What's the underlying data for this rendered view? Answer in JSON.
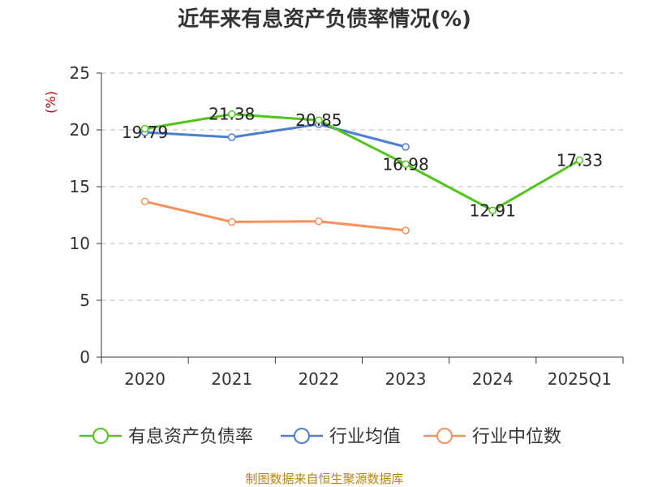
{
  "chart_data": {
    "type": "line",
    "title": "近年来有息资产负债率情况(%)",
    "ylabel": "(%)",
    "xlabel": "",
    "categories": [
      "2020",
      "2021",
      "2022",
      "2023",
      "2024",
      "2025Q1"
    ],
    "ylim": [
      0,
      25
    ],
    "yticks": [
      0,
      5,
      10,
      15,
      20,
      25
    ],
    "grid": true,
    "legend_position": "bottom",
    "series": [
      {
        "name": "有息资产负债率",
        "color": "#52c41a",
        "values": [
          20.1,
          21.38,
          20.85,
          16.98,
          12.91,
          17.33
        ],
        "labels": [
          "",
          "21.38",
          "20.85",
          "16.98",
          "12.91",
          "17.33"
        ]
      },
      {
        "name": "行业均值",
        "color": "#4a7fd6",
        "values": [
          19.79,
          19.35,
          20.5,
          18.5,
          null,
          null
        ],
        "labels": [
          "19.79",
          "",
          "",
          "",
          "",
          ""
        ]
      },
      {
        "name": "行业中位数",
        "color": "#f5905a",
        "values": [
          13.7,
          11.9,
          11.95,
          11.15,
          null,
          null
        ],
        "labels": [
          "",
          "",
          "",
          "",
          "",
          ""
        ]
      }
    ]
  },
  "footer": {
    "source": "制图数据来自恒生聚源数据库"
  }
}
